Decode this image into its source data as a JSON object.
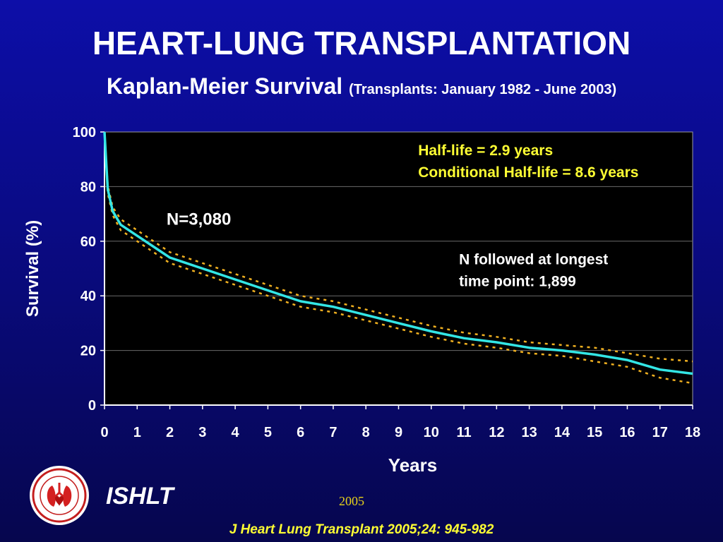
{
  "header": {
    "title": "HEART-LUNG TRANSPLANTATION",
    "subtitle": "Kaplan-Meier Survival",
    "subtitle_note": "(Transplants: January 1982 - June 2003)"
  },
  "footer": {
    "org": "ISHLT",
    "year": "2005",
    "citation": "J Heart Lung Transplant 2005;24: 945-982",
    "logo_icon": "ishlt-seal-icon"
  },
  "colors": {
    "background": "#0b0c96",
    "plot_background": "#000000",
    "survival_line": "#33e5e5",
    "ci_lines": "#f0b020",
    "annotation_yellow": "#ffff33"
  },
  "chart_data": {
    "type": "line",
    "title": "",
    "xlabel": "Years",
    "ylabel": "Survival (%)",
    "xlim": [
      0,
      18
    ],
    "ylim": [
      0,
      100
    ],
    "xticks": [
      "0",
      "1",
      "2",
      "3",
      "4",
      "5",
      "6",
      "7",
      "8",
      "9",
      "10",
      "11",
      "12",
      "13",
      "14",
      "15",
      "16",
      "17",
      "18"
    ],
    "yticks": [
      "0",
      "20",
      "40",
      "60",
      "80",
      "100"
    ],
    "grid": "horizontal",
    "x": [
      0,
      0.1,
      0.25,
      0.5,
      1,
      1.5,
      2,
      3,
      4,
      5,
      6,
      7,
      8,
      9,
      10,
      11,
      12,
      13,
      14,
      15,
      16,
      17,
      18
    ],
    "series": [
      {
        "name": "",
        "style": "solid",
        "values": [
          100,
          79,
          71,
          66,
          62,
          58,
          54,
          50,
          46,
          42,
          38,
          36,
          33,
          30,
          27,
          24.5,
          23,
          21,
          20,
          18.5,
          16.5,
          13,
          11.5
        ]
      },
      {
        "name": "",
        "style": "dotted",
        "values": [
          100,
          80.5,
          72.5,
          68,
          64,
          60,
          56,
          52,
          48,
          44,
          40,
          38,
          35,
          32,
          29,
          26.5,
          25,
          23,
          22,
          21,
          19,
          17,
          16
        ]
      },
      {
        "name": "",
        "style": "dotted",
        "values": [
          100,
          77.5,
          69.5,
          64,
          60,
          56,
          52,
          48,
          44,
          40,
          36,
          34,
          31,
          28,
          25,
          22.5,
          21,
          19,
          18,
          16,
          14,
          10,
          8
        ]
      }
    ],
    "annotations": [
      {
        "id": "halflife",
        "text": "Half-life = 2.9 years",
        "x": 9.6,
        "y": 91.5,
        "color": "yellow"
      },
      {
        "id": "cond_halflife",
        "text": "Conditional Half-life = 8.6 years",
        "x": 9.6,
        "y": 83.5,
        "color": "yellow"
      },
      {
        "id": "n_total",
        "text": "N=3,080",
        "x": 1.9,
        "y": 66,
        "color": "white"
      },
      {
        "id": "n_followed_1",
        "text": "N followed at longest",
        "x": 10.85,
        "y": 51.5,
        "color": "white"
      },
      {
        "id": "n_followed_2",
        "text": "time point: 1,899",
        "x": 10.85,
        "y": 43.5,
        "color": "white"
      }
    ]
  }
}
